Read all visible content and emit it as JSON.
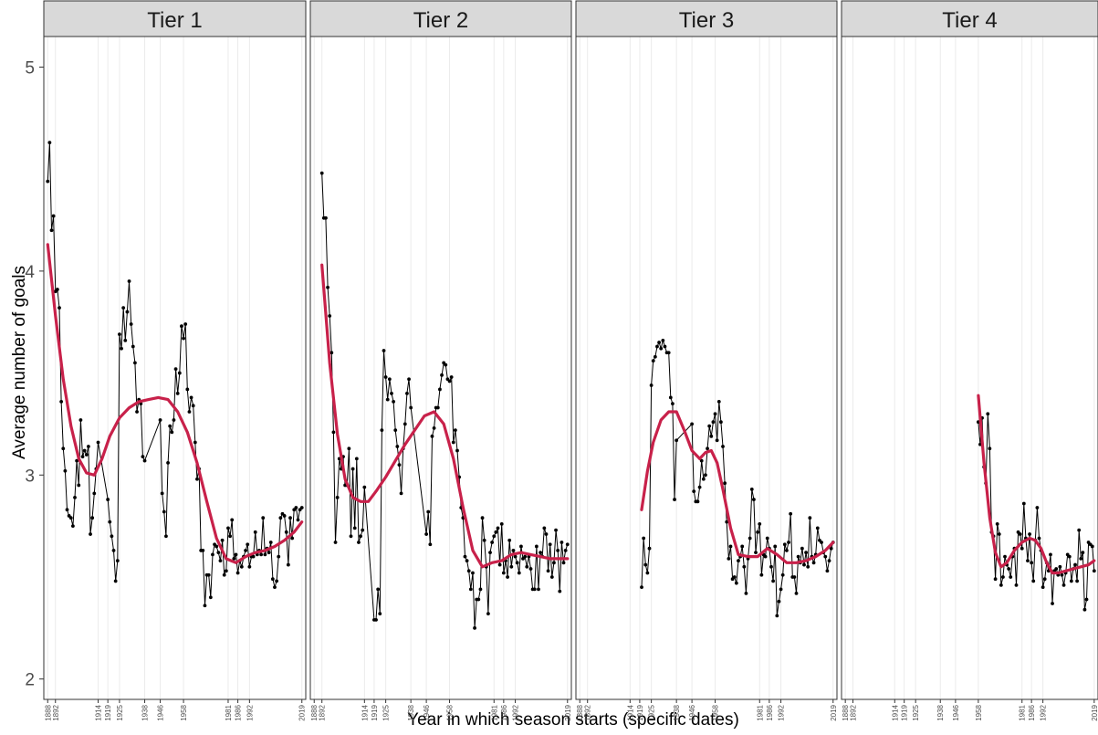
{
  "chart_data": {
    "type": "line",
    "xlabel": "Year in which season starts (specific dates)",
    "ylabel": "Average number of goals",
    "ylim": [
      1.9,
      5.15
    ],
    "xlim": [
      1886,
      2021
    ],
    "y_ticks": [
      2,
      3,
      4,
      5
    ],
    "x_ticks": [
      1888,
      1892,
      1914,
      1919,
      1925,
      1938,
      1946,
      1958,
      1981,
      1986,
      1992,
      2019
    ],
    "grid": "vertical lines at x ticks",
    "colors": {
      "points": "#000000",
      "smooth": "#c8214a",
      "strip": "#d9d9d9"
    },
    "panels": [
      {
        "label": "Tier 1",
        "x": [
          1888,
          1889,
          1890,
          1891,
          1892,
          1893,
          1894,
          1895,
          1896,
          1897,
          1898,
          1899,
          1900,
          1901,
          1902,
          1903,
          1904,
          1905,
          1906,
          1907,
          1908,
          1909,
          1910,
          1911,
          1912,
          1913,
          1914,
          1919,
          1920,
          1921,
          1922,
          1923,
          1924,
          1925,
          1926,
          1927,
          1928,
          1929,
          1930,
          1931,
          1932,
          1933,
          1934,
          1935,
          1936,
          1937,
          1938,
          1946,
          1947,
          1948,
          1949,
          1950,
          1951,
          1952,
          1953,
          1954,
          1955,
          1956,
          1957,
          1958,
          1959,
          1960,
          1961,
          1962,
          1963,
          1964,
          1965,
          1966,
          1967,
          1968,
          1969,
          1970,
          1971,
          1972,
          1973,
          1974,
          1975,
          1976,
          1977,
          1978,
          1979,
          1980,
          1981,
          1982,
          1983,
          1984,
          1985,
          1986,
          1987,
          1988,
          1989,
          1990,
          1991,
          1992,
          1993,
          1994,
          1995,
          1996,
          1997,
          1998,
          1999,
          2000,
          2001,
          2002,
          2003,
          2004,
          2005,
          2006,
          2007,
          2008,
          2009,
          2010,
          2011,
          2012,
          2013,
          2014,
          2015,
          2016,
          2017,
          2018,
          2019
        ],
        "y": [
          4.44,
          4.63,
          4.2,
          4.27,
          3.9,
          3.91,
          3.82,
          3.36,
          3.13,
          3.02,
          2.83,
          2.8,
          2.79,
          2.75,
          2.89,
          3.07,
          2.95,
          3.27,
          3.09,
          3.12,
          3.1,
          3.14,
          2.71,
          2.79,
          2.91,
          3.03,
          3.16,
          2.88,
          2.77,
          2.7,
          2.63,
          2.48,
          2.58,
          3.69,
          3.62,
          3.82,
          3.66,
          3.8,
          3.95,
          3.74,
          3.63,
          3.55,
          3.31,
          3.37,
          3.35,
          3.09,
          3.07,
          3.27,
          2.91,
          2.82,
          2.7,
          3.06,
          3.24,
          3.21,
          3.27,
          3.52,
          3.4,
          3.5,
          3.73,
          3.67,
          3.74,
          3.42,
          3.31,
          3.38,
          3.34,
          3.16,
          2.98,
          3.03,
          2.63,
          2.63,
          2.36,
          2.51,
          2.51,
          2.4,
          2.61,
          2.66,
          2.65,
          2.62,
          2.58,
          2.68,
          2.51,
          2.53,
          2.74,
          2.7,
          2.78,
          2.59,
          2.61,
          2.52,
          2.58,
          2.55,
          2.6,
          2.63,
          2.66,
          2.55,
          2.6,
          2.6,
          2.72,
          2.61,
          2.63,
          2.61,
          2.79,
          2.61,
          2.64,
          2.62,
          2.67,
          2.49,
          2.45,
          2.48,
          2.6,
          2.79,
          2.81,
          2.8,
          2.72,
          2.56,
          2.79,
          2.69,
          2.83,
          2.84,
          2.78,
          2.83,
          2.84
        ],
        "smooth_x": [
          1888,
          1892,
          1896,
          1900,
          1904,
          1908,
          1912,
          1916,
          1920,
          1925,
          1930,
          1935,
          1940,
          1945,
          1950,
          1955,
          1960,
          1965,
          1970,
          1975,
          1980,
          1985,
          1990,
          1995,
          2000,
          2005,
          2010,
          2015,
          2019
        ],
        "smooth_y": [
          4.13,
          3.78,
          3.47,
          3.24,
          3.08,
          3.01,
          3.0,
          3.08,
          3.19,
          3.28,
          3.33,
          3.36,
          3.37,
          3.38,
          3.37,
          3.31,
          3.21,
          3.06,
          2.87,
          2.69,
          2.59,
          2.57,
          2.6,
          2.62,
          2.63,
          2.65,
          2.68,
          2.72,
          2.77
        ]
      },
      {
        "label": "Tier 2",
        "x": [
          1892,
          1893,
          1894,
          1895,
          1896,
          1897,
          1898,
          1899,
          1900,
          1901,
          1902,
          1903,
          1904,
          1905,
          1906,
          1907,
          1908,
          1909,
          1910,
          1911,
          1912,
          1913,
          1914,
          1919,
          1920,
          1921,
          1922,
          1923,
          1924,
          1925,
          1926,
          1927,
          1928,
          1929,
          1930,
          1931,
          1932,
          1933,
          1934,
          1935,
          1936,
          1937,
          1938,
          1946,
          1947,
          1948,
          1949,
          1950,
          1951,
          1952,
          1953,
          1954,
          1955,
          1956,
          1957,
          1958,
          1959,
          1960,
          1961,
          1962,
          1963,
          1964,
          1965,
          1966,
          1967,
          1968,
          1969,
          1970,
          1971,
          1972,
          1973,
          1974,
          1975,
          1976,
          1977,
          1978,
          1979,
          1980,
          1981,
          1982,
          1983,
          1984,
          1985,
          1986,
          1987,
          1988,
          1989,
          1990,
          1991,
          1992,
          1993,
          1994,
          1995,
          1996,
          1997,
          1998,
          1999,
          2000,
          2001,
          2002,
          2003,
          2004,
          2005,
          2006,
          2007,
          2008,
          2009,
          2010,
          2011,
          2012,
          2013,
          2014,
          2015,
          2016,
          2017,
          2018,
          2019
        ],
        "y": [
          4.48,
          4.26,
          4.26,
          3.92,
          3.78,
          3.6,
          3.21,
          2.67,
          2.89,
          3.08,
          3.03,
          3.09,
          2.95,
          2.95,
          3.13,
          2.7,
          3.03,
          2.74,
          3.08,
          2.67,
          2.7,
          2.73,
          2.94,
          2.29,
          2.29,
          2.44,
          2.32,
          3.22,
          3.61,
          3.48,
          3.37,
          3.47,
          3.4,
          3.36,
          3.22,
          3.14,
          3.05,
          2.91,
          3.13,
          3.25,
          3.4,
          3.47,
          3.33,
          2.71,
          2.82,
          2.66,
          3.19,
          3.23,
          3.33,
          3.33,
          3.42,
          3.49,
          3.55,
          3.54,
          3.47,
          3.46,
          3.48,
          3.16,
          3.22,
          3.12,
          2.99,
          2.84,
          2.79,
          2.6,
          2.58,
          2.53,
          2.44,
          2.52,
          2.25,
          2.39,
          2.39,
          2.44,
          2.79,
          2.68,
          2.55,
          2.32,
          2.62,
          2.67,
          2.7,
          2.72,
          2.74,
          2.56,
          2.76,
          2.52,
          2.58,
          2.5,
          2.68,
          2.55,
          2.63,
          2.6,
          2.57,
          2.52,
          2.65,
          2.59,
          2.6,
          2.55,
          2.6,
          2.54,
          2.44,
          2.44,
          2.65,
          2.44,
          2.62,
          2.6,
          2.74,
          2.71,
          2.53,
          2.66,
          2.5,
          2.57,
          2.73,
          2.63,
          2.43,
          2.67,
          2.57,
          2.63,
          2.66
        ],
        "smooth_x": [
          1892,
          1896,
          1900,
          1904,
          1908,
          1912,
          1916,
          1920,
          1925,
          1930,
          1935,
          1940,
          1945,
          1950,
          1955,
          1960,
          1965,
          1970,
          1975,
          1980,
          1985,
          1990,
          1995,
          2000,
          2005,
          2010,
          2015,
          2019
        ],
        "smooth_y": [
          4.03,
          3.55,
          3.2,
          2.98,
          2.89,
          2.87,
          2.87,
          2.92,
          2.99,
          3.07,
          3.15,
          3.22,
          3.29,
          3.31,
          3.25,
          3.08,
          2.84,
          2.63,
          2.55,
          2.57,
          2.58,
          2.61,
          2.62,
          2.61,
          2.6,
          2.59,
          2.59,
          2.59
        ]
      },
      {
        "label": "Tier 3",
        "x": [
          1920,
          1921,
          1922,
          1923,
          1924,
          1925,
          1926,
          1927,
          1928,
          1929,
          1930,
          1931,
          1932,
          1933,
          1934,
          1935,
          1936,
          1937,
          1938,
          1946,
          1947,
          1948,
          1949,
          1950,
          1951,
          1952,
          1953,
          1954,
          1955,
          1956,
          1957,
          1958,
          1959,
          1960,
          1961,
          1962,
          1963,
          1964,
          1965,
          1966,
          1967,
          1968,
          1969,
          1970,
          1971,
          1972,
          1973,
          1974,
          1975,
          1976,
          1977,
          1978,
          1979,
          1980,
          1981,
          1982,
          1983,
          1984,
          1985,
          1986,
          1987,
          1988,
          1989,
          1990,
          1991,
          1992,
          1993,
          1994,
          1995,
          1996,
          1997,
          1998,
          1999,
          2000,
          2001,
          2002,
          2003,
          2004,
          2005,
          2006,
          2007,
          2008,
          2009,
          2010,
          2011,
          2012,
          2013,
          2014,
          2015,
          2016,
          2017,
          2018,
          2019
        ],
        "y": [
          2.45,
          2.69,
          2.56,
          2.52,
          2.64,
          3.44,
          3.56,
          3.58,
          3.63,
          3.65,
          3.62,
          3.66,
          3.63,
          3.6,
          3.6,
          3.38,
          3.35,
          2.88,
          3.17,
          3.25,
          2.92,
          2.87,
          2.87,
          2.94,
          3.07,
          2.98,
          3.0,
          3.13,
          3.24,
          3.19,
          3.26,
          3.3,
          3.17,
          3.36,
          3.26,
          3.14,
          2.96,
          2.77,
          2.59,
          2.65,
          2.49,
          2.5,
          2.47,
          2.58,
          2.6,
          2.65,
          2.55,
          2.42,
          2.59,
          2.69,
          2.93,
          2.88,
          2.62,
          2.72,
          2.76,
          2.51,
          2.61,
          2.6,
          2.69,
          2.64,
          2.55,
          2.48,
          2.65,
          2.31,
          2.38,
          2.44,
          2.51,
          2.66,
          2.63,
          2.67,
          2.81,
          2.5,
          2.5,
          2.42,
          2.6,
          2.57,
          2.64,
          2.56,
          2.62,
          2.55,
          2.79,
          2.6,
          2.57,
          2.61,
          2.74,
          2.68,
          2.67,
          2.62,
          2.6,
          2.53,
          2.58,
          2.64,
          2.67
        ],
        "smooth_x": [
          1920,
          1923,
          1926,
          1930,
          1934,
          1938,
          1942,
          1946,
          1950,
          1953,
          1956,
          1959,
          1962,
          1966,
          1970,
          1975,
          1980,
          1985,
          1990,
          1995,
          2000,
          2005,
          2010,
          2015,
          2019
        ],
        "smooth_y": [
          2.83,
          3.02,
          3.16,
          3.27,
          3.31,
          3.31,
          3.22,
          3.12,
          3.08,
          3.11,
          3.12,
          3.06,
          2.93,
          2.74,
          2.61,
          2.6,
          2.6,
          2.64,
          2.61,
          2.57,
          2.57,
          2.58,
          2.6,
          2.63,
          2.67
        ]
      },
      {
        "label": "Tier 4",
        "x": [
          1958,
          1959,
          1960,
          1961,
          1962,
          1963,
          1964,
          1965,
          1966,
          1967,
          1968,
          1969,
          1970,
          1971,
          1972,
          1973,
          1974,
          1975,
          1976,
          1977,
          1978,
          1979,
          1980,
          1981,
          1982,
          1983,
          1984,
          1985,
          1986,
          1987,
          1988,
          1989,
          1990,
          1991,
          1992,
          1993,
          1994,
          1995,
          1996,
          1997,
          1998,
          1999,
          2000,
          2001,
          2002,
          2003,
          2004,
          2005,
          2006,
          2007,
          2008,
          2009,
          2010,
          2011,
          2012,
          2013,
          2014,
          2015,
          2016,
          2017,
          2018,
          2019
        ],
        "y": [
          3.26,
          3.15,
          3.28,
          3.04,
          2.96,
          3.3,
          3.13,
          2.72,
          2.7,
          2.49,
          2.76,
          2.71,
          2.46,
          2.5,
          2.6,
          2.56,
          2.54,
          2.5,
          2.6,
          2.64,
          2.46,
          2.72,
          2.71,
          2.64,
          2.86,
          2.69,
          2.58,
          2.71,
          2.57,
          2.48,
          2.68,
          2.84,
          2.69,
          2.63,
          2.45,
          2.49,
          2.57,
          2.53,
          2.61,
          2.37,
          2.53,
          2.54,
          2.51,
          2.55,
          2.51,
          2.46,
          2.52,
          2.61,
          2.6,
          2.48,
          2.54,
          2.56,
          2.48,
          2.73,
          2.59,
          2.62,
          2.34,
          2.39,
          2.67,
          2.66,
          2.65,
          2.53
        ],
        "smooth_x": [
          1958,
          1961,
          1964,
          1967,
          1970,
          1973,
          1977,
          1981,
          1985,
          1988,
          1991,
          1994,
          1997,
          2000,
          2004,
          2008,
          2012,
          2016,
          2019
        ],
        "smooth_y": [
          3.39,
          3.06,
          2.79,
          2.62,
          2.55,
          2.57,
          2.63,
          2.67,
          2.69,
          2.68,
          2.64,
          2.57,
          2.52,
          2.52,
          2.53,
          2.54,
          2.55,
          2.56,
          2.58
        ]
      }
    ]
  }
}
